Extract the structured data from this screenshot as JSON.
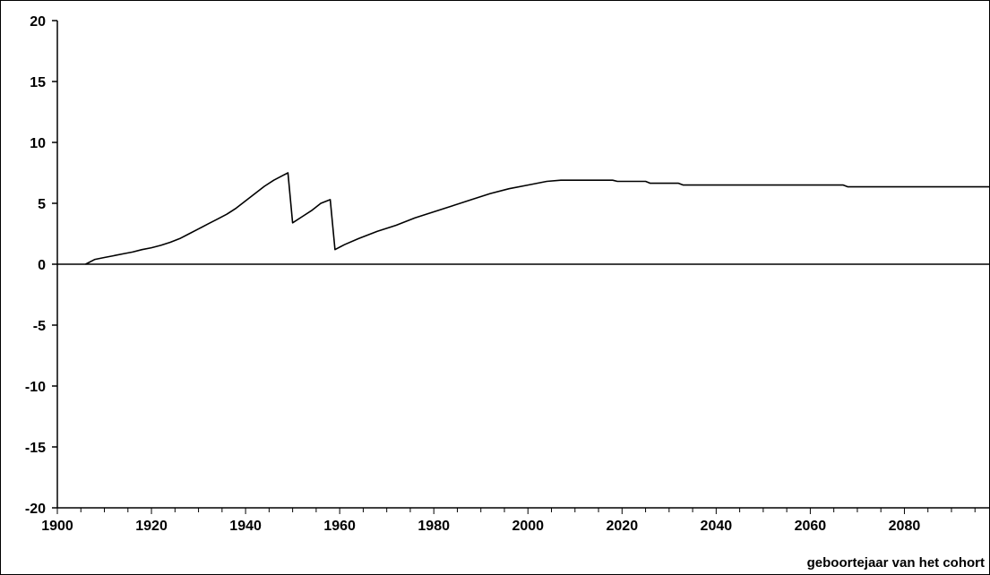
{
  "chart_data": {
    "type": "line",
    "title": "",
    "xlabel": "geboortejaar van het cohort",
    "ylabel": "",
    "xlim": [
      1900,
      2098
    ],
    "ylim": [
      -20,
      20
    ],
    "x_ticks": [
      1900,
      1920,
      1940,
      1960,
      1980,
      2000,
      2020,
      2040,
      2060,
      2080
    ],
    "y_ticks": [
      20,
      15,
      10,
      5,
      0,
      -5,
      -10,
      -15,
      -20
    ],
    "grid": false,
    "zero_line": true,
    "series": [
      {
        "color": "#000000",
        "points": [
          [
            1906,
            0.0
          ],
          [
            1908,
            0.4
          ],
          [
            1910,
            0.55
          ],
          [
            1912,
            0.7
          ],
          [
            1914,
            0.85
          ],
          [
            1916,
            1.0
          ],
          [
            1918,
            1.2
          ],
          [
            1920,
            1.35
          ],
          [
            1922,
            1.55
          ],
          [
            1924,
            1.8
          ],
          [
            1926,
            2.1
          ],
          [
            1928,
            2.5
          ],
          [
            1930,
            2.9
          ],
          [
            1932,
            3.3
          ],
          [
            1934,
            3.7
          ],
          [
            1936,
            4.1
          ],
          [
            1938,
            4.6
          ],
          [
            1940,
            5.2
          ],
          [
            1942,
            5.8
          ],
          [
            1944,
            6.4
          ],
          [
            1946,
            6.9
          ],
          [
            1948,
            7.3
          ],
          [
            1949,
            7.5
          ],
          [
            1950,
            3.4
          ],
          [
            1952,
            3.9
          ],
          [
            1954,
            4.4
          ],
          [
            1956,
            5.0
          ],
          [
            1958,
            5.3
          ],
          [
            1959,
            1.2
          ],
          [
            1961,
            1.6
          ],
          [
            1964,
            2.1
          ],
          [
            1968,
            2.7
          ],
          [
            1972,
            3.2
          ],
          [
            1976,
            3.8
          ],
          [
            1980,
            4.3
          ],
          [
            1984,
            4.8
          ],
          [
            1988,
            5.3
          ],
          [
            1992,
            5.8
          ],
          [
            1996,
            6.2
          ],
          [
            2000,
            6.5
          ],
          [
            2004,
            6.8
          ],
          [
            2007,
            6.9
          ],
          [
            2018,
            6.9
          ],
          [
            2019,
            6.8
          ],
          [
            2025,
            6.8
          ],
          [
            2026,
            6.65
          ],
          [
            2032,
            6.65
          ],
          [
            2033,
            6.5
          ],
          [
            2067,
            6.5
          ],
          [
            2068,
            6.35
          ],
          [
            2098,
            6.35
          ]
        ]
      }
    ]
  }
}
